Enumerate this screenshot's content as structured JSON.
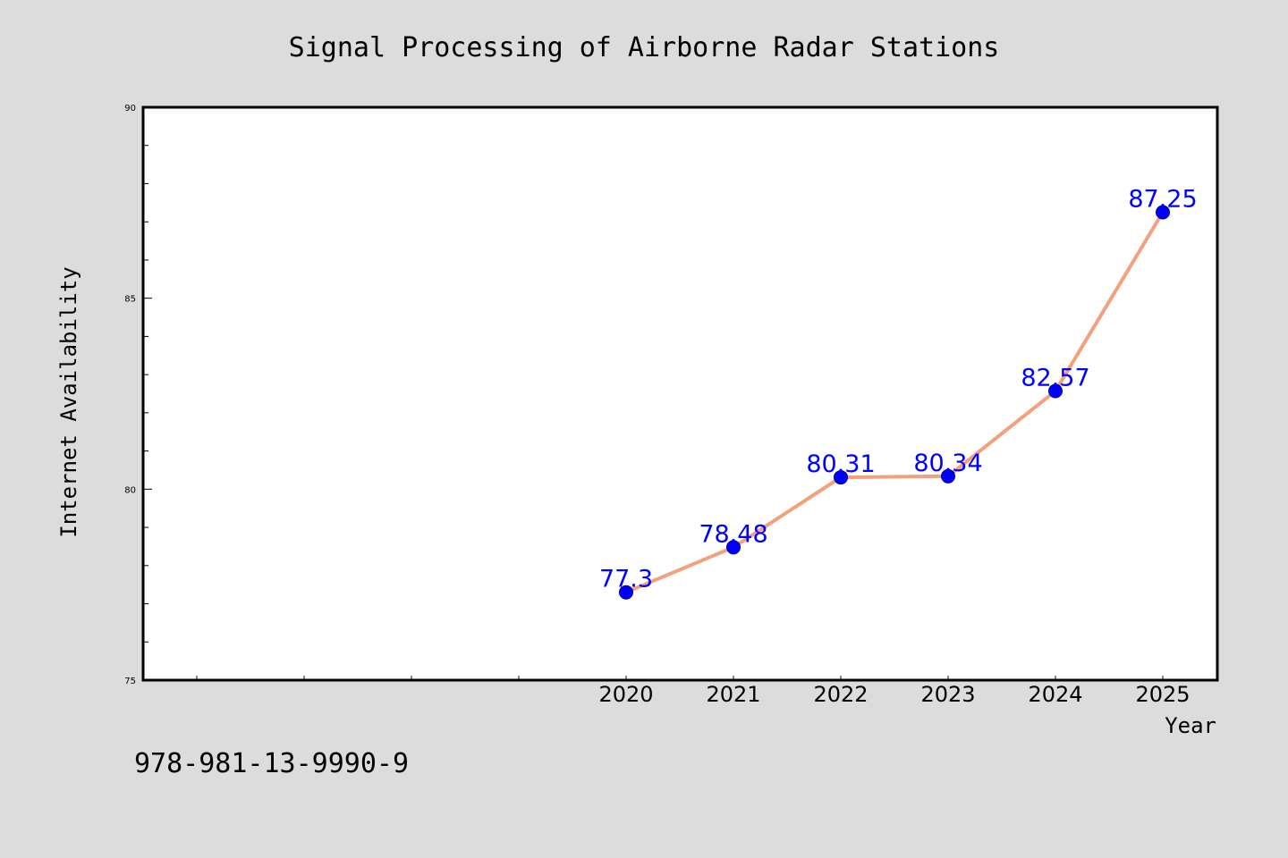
{
  "chart_data": {
    "type": "line",
    "title": "Signal Processing of Airborne Radar Stations",
    "xlabel": "Year",
    "ylabel": "Internet Availability",
    "x": [
      "2020",
      "2021",
      "2022",
      "2023",
      "2024",
      "2025"
    ],
    "series": [
      {
        "values": [
          77.3,
          78.48,
          80.31,
          80.34,
          82.57,
          87.25
        ]
      }
    ],
    "data_labels": [
      "77.3",
      "78.48",
      "80.31",
      "80.34",
      "82.57",
      "87.25"
    ],
    "ylim": [
      75,
      90
    ],
    "y_ticks": [
      "75",
      "80",
      "85",
      "90"
    ],
    "grid": false,
    "line_color": "#f4a07e",
    "marker_color": "#0000ff",
    "label_color": "#0000ff"
  },
  "footer": {
    "isbn": "978-981-13-9990-9"
  }
}
